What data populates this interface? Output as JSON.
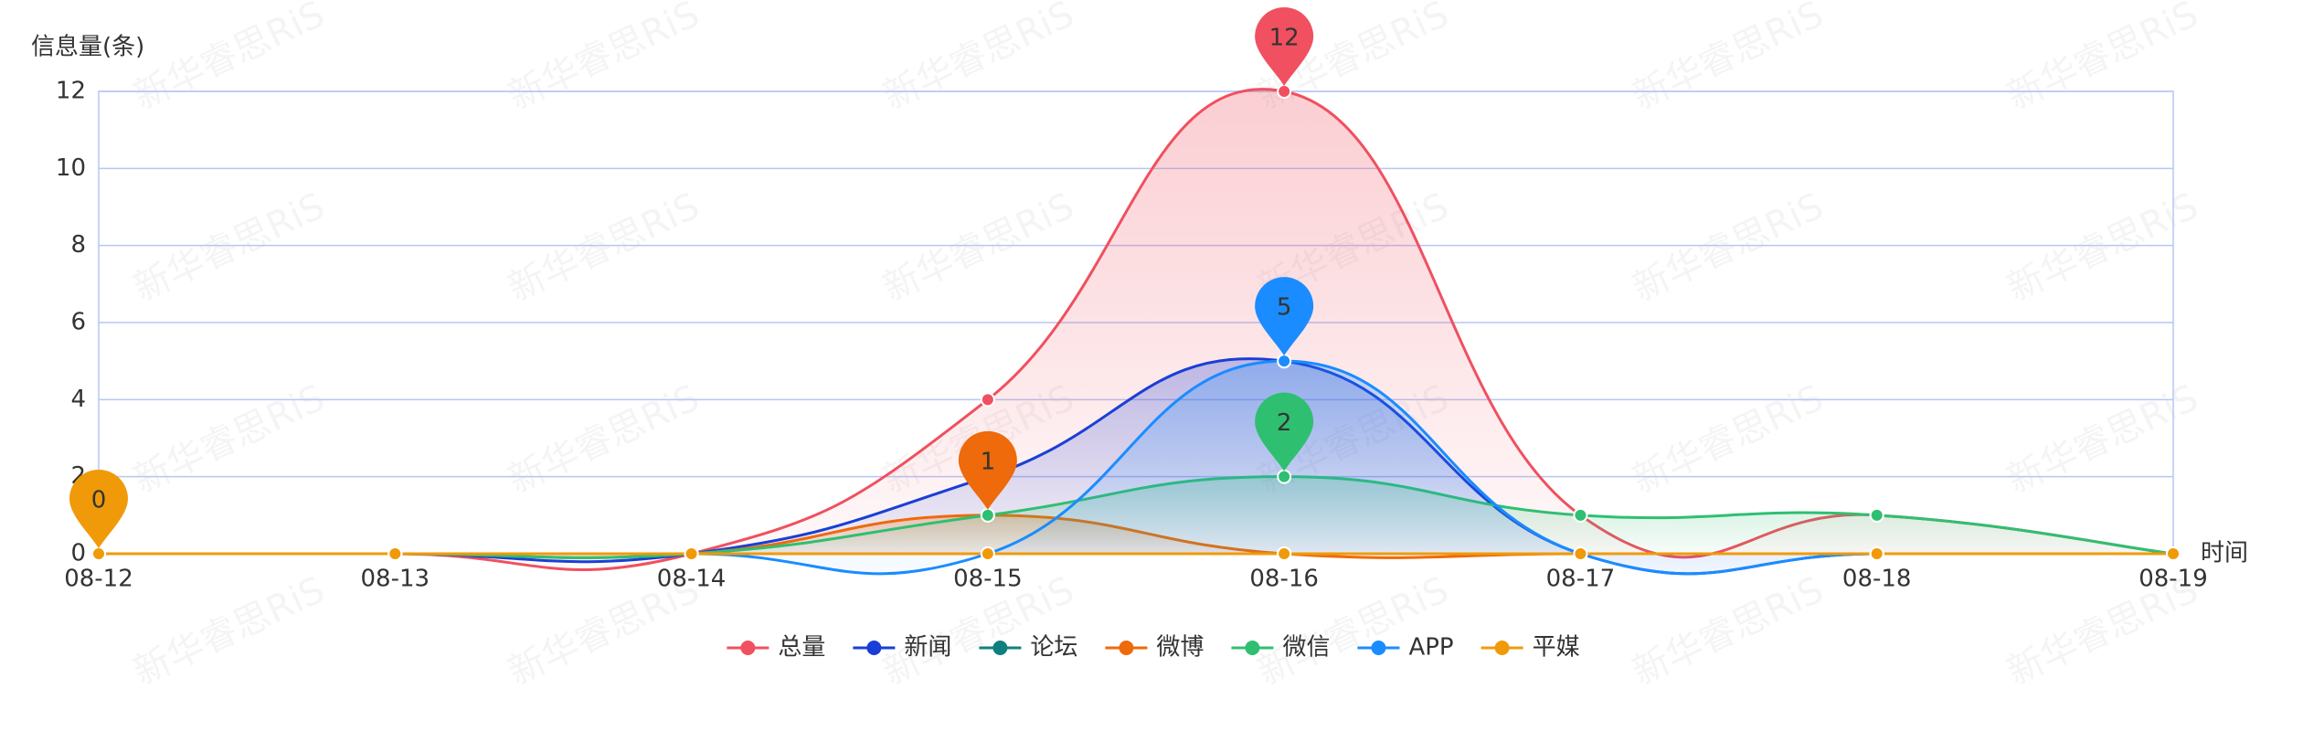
{
  "chart_data": {
    "type": "line",
    "y_label": "信息量(条)",
    "x_label": "时间",
    "watermark": "新华睿思RiS",
    "categories": [
      "08-12",
      "08-13",
      "08-14",
      "08-15",
      "08-16",
      "08-17",
      "08-18",
      "08-19"
    ],
    "ylim": [
      0,
      12
    ],
    "yticks": [
      0,
      2,
      4,
      6,
      8,
      10,
      12
    ],
    "grid": true,
    "smooth": true,
    "area": true,
    "legend": "bottom",
    "series": [
      {
        "name": "总量",
        "color": "#f0505f",
        "values": [
          0,
          0,
          0,
          4,
          12,
          1,
          1,
          0
        ],
        "mark_max": true
      },
      {
        "name": "新闻",
        "color": "#1a3fd6",
        "values": [
          0,
          0,
          0,
          2,
          5,
          0,
          0,
          0
        ],
        "mark_max": false
      },
      {
        "name": "论坛",
        "color": "#0e8080",
        "values": [
          0,
          0,
          0,
          0,
          0,
          0,
          0,
          0
        ],
        "mark_max": false
      },
      {
        "name": "微博",
        "color": "#ee6a0a",
        "values": [
          0,
          0,
          0,
          1,
          0,
          0,
          0,
          0
        ],
        "mark_max": true
      },
      {
        "name": "微信",
        "color": "#2fbf71",
        "values": [
          0,
          0,
          0,
          1,
          2,
          1,
          1,
          0
        ],
        "mark_max": true
      },
      {
        "name": "APP",
        "color": "#1a8cff",
        "values": [
          0,
          0,
          0,
          0,
          5,
          0,
          0,
          0
        ],
        "mark_max": true
      },
      {
        "name": "平媒",
        "color": "#f09a0a",
        "values": [
          0,
          0,
          0,
          0,
          0,
          0,
          0,
          0
        ],
        "mark_max": true
      }
    ]
  }
}
